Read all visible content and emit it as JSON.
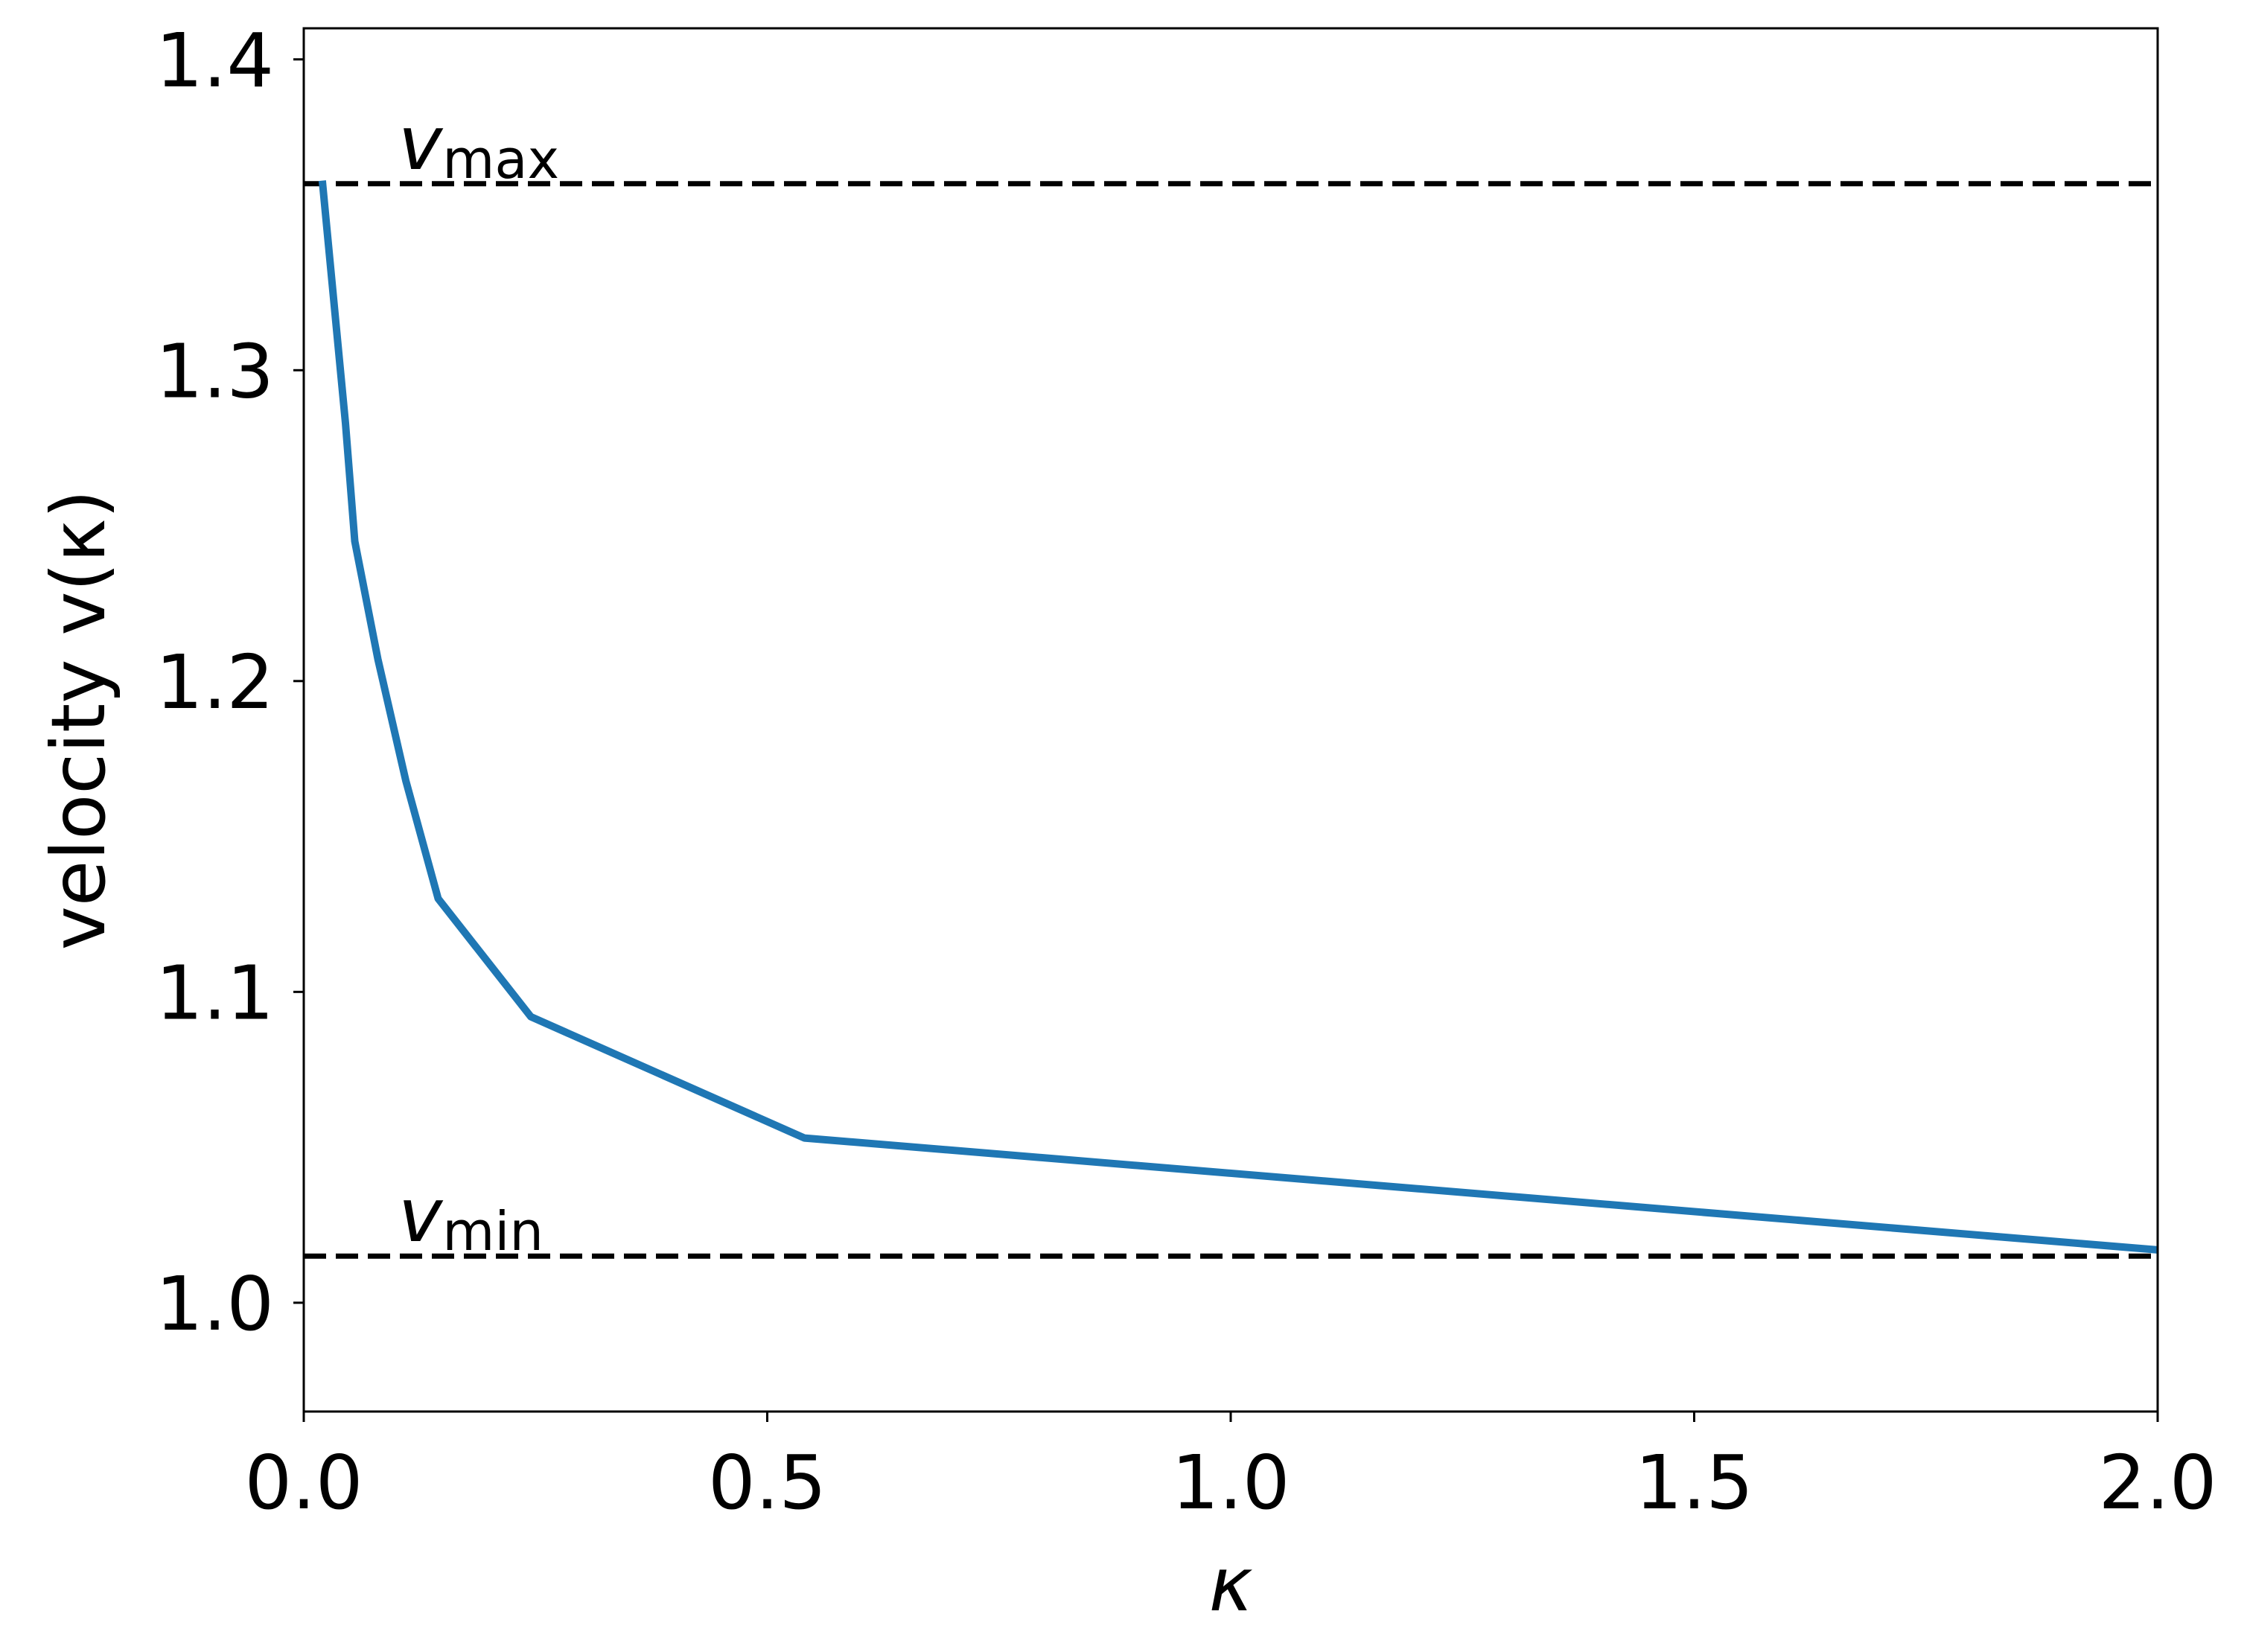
{
  "chart_data": {
    "type": "line",
    "title": "",
    "xlabel": "κ",
    "ylabel": "velocity v(κ)",
    "xlim": [
      0.0,
      2.0
    ],
    "ylim": [
      0.965,
      1.41
    ],
    "xticks": [
      0.0,
      0.5,
      1.0,
      1.5,
      2.0
    ],
    "xtick_labels": [
      "0.0",
      "0.5",
      "1.0",
      "1.5",
      "2.0"
    ],
    "yticks": [
      1.0,
      1.1,
      1.2,
      1.3,
      1.4
    ],
    "ytick_labels": [
      "1.0",
      "1.1",
      "1.2",
      "1.3",
      "1.4"
    ],
    "grid": false,
    "series": [
      {
        "color": "#1f77b4",
        "x": [
          0.02,
          0.045,
          0.055,
          0.08,
          0.11,
          0.145,
          0.245,
          0.54,
          2.0
        ],
        "y": [
          1.361,
          1.283,
          1.245,
          1.207,
          1.168,
          1.13,
          1.092,
          1.053,
          1.017
        ]
      }
    ],
    "reference_lines": [
      {
        "label_base": "v",
        "label_sub": "max",
        "y": 1.36,
        "style": "dashed",
        "color": "#000000"
      },
      {
        "label_base": "v",
        "label_sub": "min",
        "y": 1.015,
        "style": "dashed",
        "color": "#000000"
      }
    ]
  }
}
